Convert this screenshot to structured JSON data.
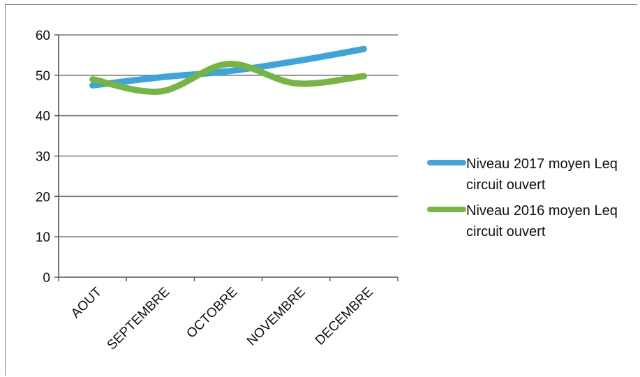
{
  "chart_data": {
    "type": "line",
    "categories": [
      "AOUT",
      "SEPTEMBRE",
      "OCTOBRE",
      "NOVEMBRE",
      "DECEMBRE"
    ],
    "series": [
      {
        "name": "Niveau 2017 moyen Leq circuit ouvert",
        "color": "#3da5dc",
        "values": [
          47.5,
          49.5,
          51,
          53.5,
          56.5
        ]
      },
      {
        "name": "Niveau 2016 moyen Leq circuit ouvert",
        "color": "#76b541",
        "values": [
          49,
          46,
          52.8,
          48,
          49.8
        ]
      }
    ],
    "ylim": [
      0,
      60
    ],
    "yticks": [
      0,
      10,
      20,
      30,
      40,
      50,
      60
    ],
    "grid": true,
    "legend": "right"
  }
}
